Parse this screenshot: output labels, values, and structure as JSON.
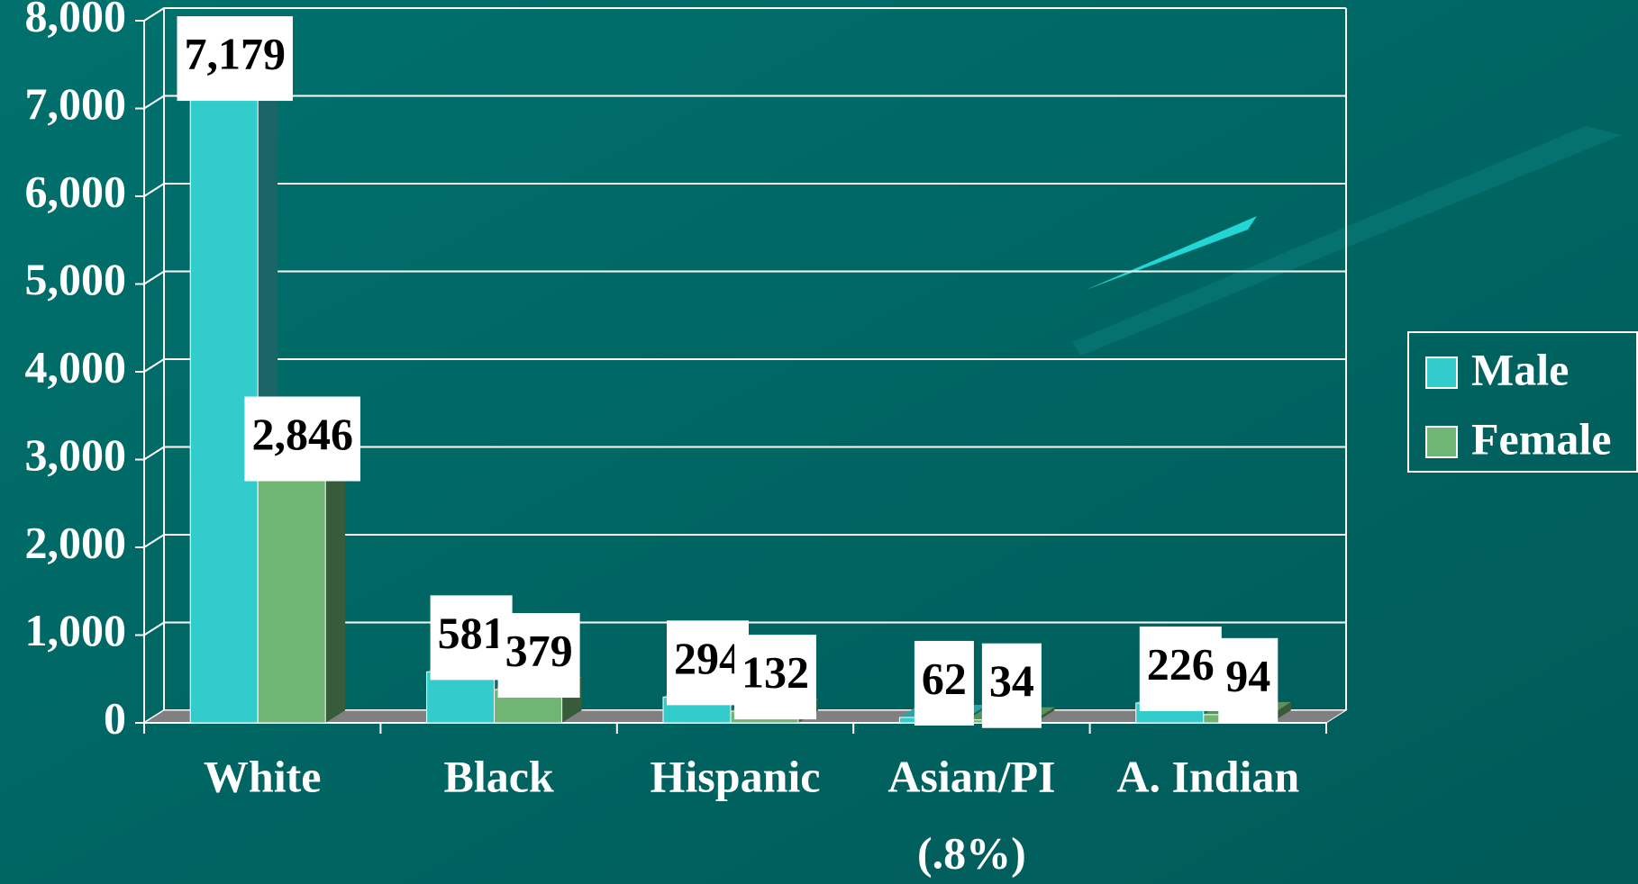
{
  "chart_data": {
    "type": "bar3d",
    "categories": [
      "White",
      "Black",
      "Hispanic",
      "Asian/PI",
      "A. Indian"
    ],
    "annotations": [
      {
        "text": "(.8%)",
        "category": 3
      }
    ],
    "series": [
      {
        "name": "Male",
        "color": "#33cccc",
        "values": [
          7179,
          581,
          294,
          62,
          226
        ],
        "value_labels": [
          "7,179",
          "581",
          "294",
          "62",
          "226"
        ]
      },
      {
        "name": "Female",
        "color": "#6fb574",
        "values": [
          2846,
          379,
          132,
          34,
          94
        ],
        "value_labels": [
          "2,846",
          "379",
          "132",
          "34",
          "94"
        ]
      }
    ],
    "ylim": [
      0,
      8000
    ],
    "yticks": [
      {
        "value": 0,
        "label": "0"
      },
      {
        "value": 1000,
        "label": "1,000"
      },
      {
        "value": 2000,
        "label": "2,000"
      },
      {
        "value": 3000,
        "label": "3,000"
      },
      {
        "value": 4000,
        "label": "4,000"
      },
      {
        "value": 5000,
        "label": "5,000"
      },
      {
        "value": 6000,
        "label": "6,000"
      },
      {
        "value": 7000,
        "label": "7,000"
      },
      {
        "value": 8000,
        "label": "8,000"
      }
    ],
    "grid": true,
    "legend": "right"
  }
}
